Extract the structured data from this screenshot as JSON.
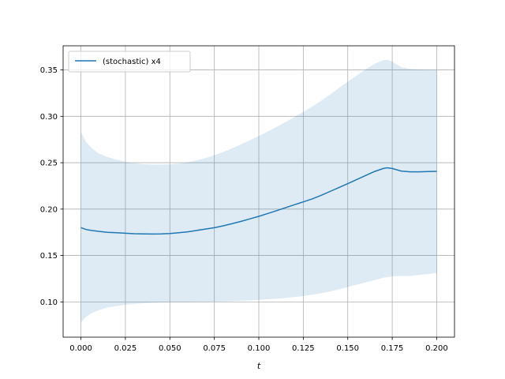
{
  "chart_data": {
    "type": "line",
    "xlabel": "t",
    "ylabel": "",
    "title": "",
    "xlim": [
      -0.01,
      0.21
    ],
    "ylim": [
      0.062,
      0.376
    ],
    "grid": true,
    "legend_position": "top-left",
    "colors": {
      "line": "#1f77b4",
      "band": "#1f77b4"
    },
    "x_ticks": [
      0.0,
      0.025,
      0.05,
      0.075,
      0.1,
      0.125,
      0.15,
      0.175,
      0.2
    ],
    "x_tick_labels": [
      "0.000",
      "0.025",
      "0.050",
      "0.075",
      "0.100",
      "0.125",
      "0.150",
      "0.175",
      "0.200"
    ],
    "y_ticks": [
      0.1,
      0.15,
      0.2,
      0.25,
      0.3,
      0.35
    ],
    "y_tick_labels": [
      "0.10",
      "0.15",
      "0.20",
      "0.25",
      "0.30",
      "0.35"
    ],
    "series": [
      {
        "name": "(stochastic) x4",
        "x": [
          0.0,
          0.003,
          0.006,
          0.01,
          0.015,
          0.02,
          0.025,
          0.03,
          0.035,
          0.04,
          0.045,
          0.05,
          0.055,
          0.06,
          0.065,
          0.07,
          0.075,
          0.08,
          0.085,
          0.09,
          0.095,
          0.1,
          0.105,
          0.11,
          0.115,
          0.12,
          0.125,
          0.13,
          0.135,
          0.14,
          0.145,
          0.15,
          0.155,
          0.16,
          0.165,
          0.17,
          0.172,
          0.175,
          0.18,
          0.185,
          0.19,
          0.195,
          0.2
        ],
        "y": [
          0.18,
          0.178,
          0.177,
          0.176,
          0.175,
          0.1745,
          0.174,
          0.1735,
          0.1733,
          0.1732,
          0.1733,
          0.1737,
          0.1745,
          0.1755,
          0.177,
          0.1785,
          0.18,
          0.182,
          0.1843,
          0.1868,
          0.1895,
          0.1922,
          0.1952,
          0.1983,
          0.2015,
          0.2047,
          0.2078,
          0.211,
          0.2148,
          0.219,
          0.2232,
          0.2275,
          0.2318,
          0.2362,
          0.2405,
          0.2438,
          0.2445,
          0.2438,
          0.241,
          0.2402,
          0.2402,
          0.2405,
          0.2407
        ],
        "lower": [
          0.078,
          0.084,
          0.088,
          0.091,
          0.094,
          0.0955,
          0.097,
          0.0978,
          0.0985,
          0.099,
          0.0993,
          0.0995,
          0.0997,
          0.0998,
          0.0999,
          0.1,
          0.1003,
          0.1005,
          0.1008,
          0.1012,
          0.1016,
          0.1022,
          0.1028,
          0.1034,
          0.1042,
          0.1052,
          0.1063,
          0.1077,
          0.1093,
          0.1112,
          0.1135,
          0.116,
          0.1185,
          0.121,
          0.1235,
          0.126,
          0.1268,
          0.1275,
          0.128,
          0.128,
          0.129,
          0.13,
          0.131
        ],
        "upper": [
          0.283,
          0.272,
          0.266,
          0.26,
          0.256,
          0.2535,
          0.251,
          0.2495,
          0.2485,
          0.248,
          0.248,
          0.2483,
          0.249,
          0.2505,
          0.2525,
          0.255,
          0.258,
          0.2615,
          0.2655,
          0.2698,
          0.2742,
          0.2788,
          0.2836,
          0.2886,
          0.2938,
          0.2992,
          0.3048,
          0.3105,
          0.3168,
          0.3235,
          0.3305,
          0.3372,
          0.344,
          0.3505,
          0.3565,
          0.3605,
          0.361,
          0.359,
          0.353,
          0.351,
          0.3505,
          0.3502,
          0.35
        ]
      }
    ]
  }
}
